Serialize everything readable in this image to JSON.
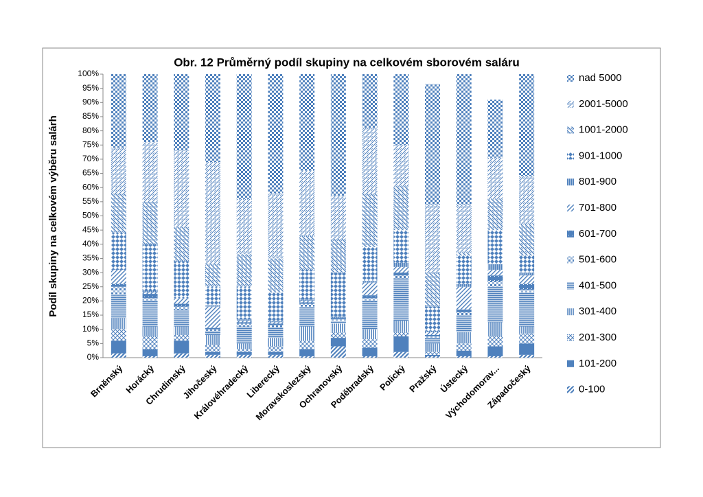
{
  "chart_data": {
    "type": "stacked_bar",
    "title": "Obr. 12 Průměrný podíl skupiny na celkovém sborovém saláru",
    "y_label": "Podíl skupiny na celkovém výběru salárh",
    "categories": [
      "Brněnský",
      "Horácký",
      "Chrudimský",
      "Jihočeský",
      "Královéhradecký",
      "Liberecký",
      "Moravskoslezský",
      "Ochranovský",
      "Poděbradský",
      "Polický",
      "Pražský",
      "Ústecký",
      "Východomorav...",
      "Západočeský"
    ],
    "ylim": [
      0,
      100
    ],
    "yticks": [
      {
        "value": 0,
        "label": "0%"
      },
      {
        "value": 5,
        "label": "5%"
      },
      {
        "value": 10,
        "label": "10%"
      },
      {
        "value": 15,
        "label": "15%"
      },
      {
        "value": 20,
        "label": "20%"
      },
      {
        "value": 25,
        "label": "25%"
      },
      {
        "value": 30,
        "label": "30%"
      },
      {
        "value": 35,
        "label": "35%"
      },
      {
        "value": 40,
        "label": "40%"
      },
      {
        "value": 45,
        "label": "45%"
      },
      {
        "value": 50,
        "label": "50%"
      },
      {
        "value": 55,
        "label": "55%"
      },
      {
        "value": 60,
        "label": "60%"
      },
      {
        "value": 65,
        "label": "65%"
      },
      {
        "value": 70,
        "label": "70%"
      },
      {
        "value": 75,
        "label": "75%"
      },
      {
        "value": 80,
        "label": "80%"
      },
      {
        "value": 85,
        "label": "85%"
      },
      {
        "value": 90,
        "label": "90%"
      },
      {
        "value": 95,
        "label": "95%"
      },
      {
        "value": 100,
        "label": "100%"
      }
    ],
    "legend": "right",
    "series": [
      {
        "name": "0-100",
        "color": "#4f81bd",
        "values": [
          1.5,
          0.5,
          1.5,
          1,
          1,
          1,
          0.5,
          4,
          0.5,
          2,
          0.5,
          0.5,
          0.5,
          1
        ]
      },
      {
        "name": "101-200",
        "color": "#4f81bd",
        "values": [
          4.5,
          2.5,
          4.5,
          1,
          1,
          1,
          2.5,
          3,
          3,
          5.5,
          0.5,
          2,
          3.5,
          4
        ]
      },
      {
        "name": "201-300",
        "color": "#4f81bd",
        "values": [
          4,
          4.5,
          2,
          2.5,
          1,
          2,
          3,
          2,
          3,
          1.5,
          1,
          2.5,
          3.5,
          3.5
        ]
      },
      {
        "name": "301-400",
        "color": "#4f81bd",
        "values": [
          4,
          3.5,
          3,
          3.5,
          2,
          3,
          5,
          3,
          3.5,
          4,
          3,
          4,
          5,
          2.5
        ]
      },
      {
        "name": "401-500",
        "color": "#4f81bd",
        "values": [
          8,
          9,
          6,
          1.5,
          6,
          3.5,
          7,
          1,
          10,
          15,
          2,
          6,
          12.5,
          12
        ]
      },
      {
        "name": "501-600",
        "color": "#4f81bd",
        "values": [
          3,
          1,
          1,
          0.5,
          1,
          1,
          1,
          0.5,
          1,
          1,
          0.5,
          1,
          2,
          1
        ]
      },
      {
        "name": "601-700",
        "color": "#4f81bd",
        "values": [
          1,
          1.5,
          1,
          0.5,
          0.5,
          0.5,
          0.5,
          0.5,
          1,
          1,
          0.5,
          1,
          2,
          2
        ]
      },
      {
        "name": "701-800",
        "color": "#4f81bd",
        "values": [
          5,
          0.5,
          2,
          7.5,
          0.5,
          0.5,
          0.5,
          0,
          4.5,
          2,
          1,
          8,
          2,
          3
        ]
      },
      {
        "name": "801-900",
        "color": "#4f81bd",
        "values": [
          0,
          0.5,
          0,
          0.5,
          0.5,
          0.5,
          0.5,
          0.5,
          0.5,
          1.5,
          0.5,
          1,
          2,
          1
        ]
      },
      {
        "name": "901-1000",
        "color": "#4f81bd",
        "values": [
          13,
          16.5,
          13,
          6.5,
          11.5,
          10,
          10.5,
          15.5,
          12,
          11.5,
          8.5,
          10,
          12,
          6
        ]
      },
      {
        "name": "1001-2000",
        "color": "#4f81bd",
        "values": [
          14,
          15,
          12,
          8,
          11.5,
          12,
          12,
          12,
          19,
          15.5,
          12,
          1,
          11,
          11
        ]
      },
      {
        "name": "2001-5000",
        "color": "#4f81bd",
        "values": [
          16,
          21,
          27,
          36,
          19.5,
          23,
          23,
          15,
          23,
          14.5,
          24,
          17,
          14.5,
          17
        ]
      },
      {
        "name": "nad 5000",
        "color": "#4f81bd",
        "values": [
          26,
          24,
          27,
          31,
          44,
          42,
          34,
          43,
          19,
          25,
          42.5,
          46,
          20.5,
          36
        ]
      }
    ]
  }
}
